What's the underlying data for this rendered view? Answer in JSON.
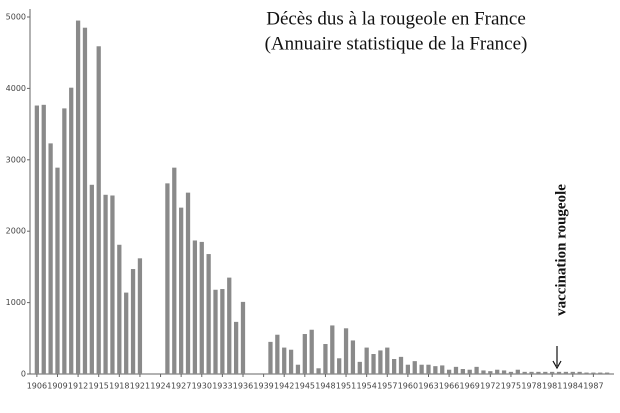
{
  "chart_data": {
    "type": "bar",
    "title": [
      "Décès dus à la rougeole en France",
      "(Annuaire statistique de la France)"
    ],
    "annotation": "vaccination rougeole",
    "color": "#8a8a8a",
    "x": [
      1906,
      1907,
      1908,
      1909,
      1910,
      1911,
      1912,
      1913,
      1914,
      1915,
      1916,
      1917,
      1918,
      1919,
      1920,
      1921,
      1922,
      1923,
      1924,
      1925,
      1926,
      1927,
      1928,
      1929,
      1930,
      1931,
      1932,
      1933,
      1934,
      1935,
      1936,
      1937,
      1938,
      1939,
      1940,
      1941,
      1942,
      1943,
      1944,
      1945,
      1946,
      1947,
      1948,
      1949,
      1950,
      1951,
      1952,
      1953,
      1954,
      1955,
      1956,
      1957,
      1958,
      1959,
      1960,
      1961,
      1962,
      1963,
      1964,
      1965,
      1966,
      1967,
      1968,
      1969,
      1970,
      1971,
      1972,
      1973,
      1974,
      1975,
      1976,
      1977,
      1978,
      1979,
      1980,
      1981,
      1982,
      1983,
      1984,
      1985,
      1986,
      1987,
      1988,
      1989
    ],
    "values": [
      3760,
      3770,
      3230,
      2890,
      3720,
      4010,
      4950,
      4850,
      2650,
      4590,
      2510,
      2500,
      1810,
      1140,
      1470,
      1620,
      null,
      null,
      null,
      2670,
      2890,
      2330,
      2540,
      1870,
      1850,
      1680,
      1180,
      1190,
      1350,
      730,
      1010,
      null,
      null,
      null,
      450,
      550,
      370,
      340,
      130,
      560,
      620,
      80,
      420,
      680,
      220,
      640,
      470,
      170,
      370,
      280,
      330,
      370,
      210,
      240,
      130,
      180,
      130,
      130,
      110,
      120,
      60,
      100,
      70,
      60,
      100,
      50,
      40,
      60,
      50,
      30,
      60,
      30,
      30,
      30,
      30,
      30,
      30,
      30,
      30,
      30,
      20,
      20,
      20,
      20
    ],
    "xlim": [
      1905,
      1990
    ],
    "xticks": [
      1906,
      1909,
      1912,
      1915,
      1918,
      1921,
      1924,
      1927,
      1930,
      1933,
      1936,
      1939,
      1942,
      1945,
      1948,
      1951,
      1954,
      1957,
      1960,
      1963,
      1966,
      1969,
      1972,
      1975,
      1978,
      1981,
      1984,
      1987
    ],
    "ylim": [
      0,
      5000
    ],
    "yticks": [
      0,
      1000,
      2000,
      3000,
      4000,
      5000
    ],
    "grid": false
  }
}
